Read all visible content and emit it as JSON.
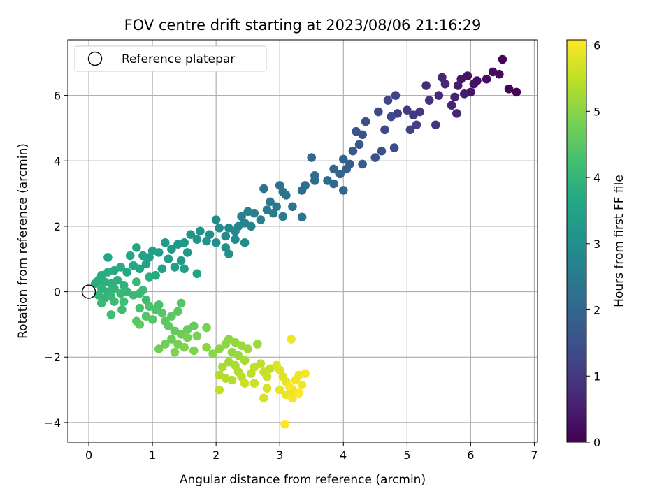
{
  "chart_data": {
    "type": "scatter",
    "title": "FOV centre drift starting at 2023/08/06 21:16:29",
    "xlabel": "Angular distance from reference (arcmin)",
    "ylabel": "Rotation from reference (arcmin)",
    "xlim": [
      -0.33,
      7.05
    ],
    "ylim": [
      -4.6,
      7.7
    ],
    "xticks": [
      0,
      1,
      2,
      3,
      4,
      5,
      6,
      7
    ],
    "yticks": [
      -4,
      -2,
      0,
      2,
      4,
      6
    ],
    "grid": true,
    "legend": {
      "position": "top-left",
      "entries": [
        "Reference platepar"
      ]
    },
    "reference_point": {
      "x": 0,
      "y": 0,
      "label": "Reference platepar"
    },
    "colorbar": {
      "label": "Hours from first FF file",
      "colormap": "viridis",
      "range": [
        0,
        6.08
      ],
      "ticks": [
        0,
        1,
        2,
        3,
        4,
        5,
        6
      ]
    },
    "series": [
      {
        "name": "",
        "points": [
          [
            6.5,
            7.1,
            0.05
          ],
          [
            6.6,
            6.2,
            0.07
          ],
          [
            6.72,
            6.1,
            0.08
          ],
          [
            6.45,
            6.65,
            0.12
          ],
          [
            6.35,
            6.72,
            0.15
          ],
          [
            6.25,
            6.5,
            0.2
          ],
          [
            6.1,
            6.45,
            0.25
          ],
          [
            5.95,
            6.6,
            0.3
          ],
          [
            6.05,
            6.35,
            0.28
          ],
          [
            6.0,
            6.1,
            0.35
          ],
          [
            5.85,
            6.5,
            0.4
          ],
          [
            5.9,
            6.05,
            0.45
          ],
          [
            5.8,
            6.3,
            0.5
          ],
          [
            5.75,
            5.95,
            0.55
          ],
          [
            5.7,
            5.7,
            0.6
          ],
          [
            5.78,
            5.45,
            0.6
          ],
          [
            5.6,
            6.35,
            0.65
          ],
          [
            5.55,
            6.55,
            0.68
          ],
          [
            5.5,
            6.0,
            0.7
          ],
          [
            5.3,
            6.3,
            0.8
          ],
          [
            5.35,
            5.85,
            0.85
          ],
          [
            5.2,
            5.5,
            0.95
          ],
          [
            5.1,
            5.4,
            1.0
          ],
          [
            5.0,
            5.55,
            1.05
          ],
          [
            4.85,
            5.45,
            1.1
          ],
          [
            5.05,
            4.95,
            1.15
          ],
          [
            5.15,
            5.1,
            1.15
          ],
          [
            5.45,
            5.1,
            0.9
          ],
          [
            4.82,
            6.0,
            1.2
          ],
          [
            4.7,
            5.85,
            1.25
          ],
          [
            4.75,
            5.35,
            1.3
          ],
          [
            4.65,
            4.95,
            1.35
          ],
          [
            4.55,
            5.5,
            1.35
          ],
          [
            4.8,
            4.4,
            1.45
          ],
          [
            4.6,
            4.3,
            1.5
          ],
          [
            4.5,
            4.1,
            1.55
          ],
          [
            4.35,
            5.2,
            1.45
          ],
          [
            4.3,
            4.8,
            1.5
          ],
          [
            4.2,
            4.9,
            1.55
          ],
          [
            4.25,
            4.5,
            1.65
          ],
          [
            4.15,
            4.3,
            1.7
          ],
          [
            4.1,
            3.9,
            1.8
          ],
          [
            4.05,
            3.75,
            1.85
          ],
          [
            4.3,
            3.9,
            1.75
          ],
          [
            4.0,
            4.05,
            1.9
          ],
          [
            3.95,
            3.6,
            1.95
          ],
          [
            3.85,
            3.75,
            2.0
          ],
          [
            4.0,
            3.1,
            2.0
          ],
          [
            3.85,
            3.3,
            2.05
          ],
          [
            3.75,
            3.4,
            2.1
          ],
          [
            3.55,
            3.4,
            2.1
          ],
          [
            3.55,
            3.55,
            2.15
          ],
          [
            3.5,
            4.1,
            2.05
          ],
          [
            3.35,
            3.1,
            2.2
          ],
          [
            3.4,
            3.25,
            2.2
          ],
          [
            3.35,
            2.28,
            2.35
          ],
          [
            3.2,
            2.6,
            2.3
          ],
          [
            3.1,
            2.95,
            2.3
          ],
          [
            3.0,
            3.25,
            2.25
          ],
          [
            3.05,
            3.05,
            2.3
          ],
          [
            2.85,
            2.75,
            2.4
          ],
          [
            2.95,
            2.6,
            2.4
          ],
          [
            2.75,
            3.15,
            2.3
          ],
          [
            3.05,
            2.3,
            2.5
          ],
          [
            2.9,
            2.4,
            2.5
          ],
          [
            2.8,
            2.5,
            2.5
          ],
          [
            2.7,
            2.2,
            2.6
          ],
          [
            2.6,
            2.4,
            2.6
          ],
          [
            2.5,
            2.45,
            2.65
          ],
          [
            2.4,
            2.3,
            2.65
          ],
          [
            2.55,
            2.0,
            2.7
          ],
          [
            2.45,
            2.1,
            2.75
          ],
          [
            2.35,
            2.0,
            2.8
          ],
          [
            2.3,
            1.85,
            2.8
          ],
          [
            2.2,
            1.95,
            2.85
          ],
          [
            2.45,
            1.5,
            2.9
          ],
          [
            2.3,
            1.6,
            2.85
          ],
          [
            2.15,
            1.7,
            2.9
          ],
          [
            2.05,
            1.95,
            2.95
          ],
          [
            2.0,
            2.2,
            2.9
          ],
          [
            2.15,
            1.35,
            3.0
          ],
          [
            2.2,
            1.15,
            3.0
          ],
          [
            2.0,
            1.5,
            3.0
          ],
          [
            1.9,
            1.75,
            3.05
          ],
          [
            1.85,
            1.55,
            3.1
          ],
          [
            1.75,
            1.85,
            3.1
          ],
          [
            1.7,
            1.6,
            3.15
          ],
          [
            1.6,
            1.75,
            3.15
          ],
          [
            1.5,
            1.5,
            3.2
          ],
          [
            1.55,
            1.2,
            3.2
          ],
          [
            1.4,
            1.45,
            3.25
          ],
          [
            1.3,
            1.3,
            3.25
          ],
          [
            1.2,
            1.5,
            3.3
          ],
          [
            1.45,
            0.95,
            3.3
          ],
          [
            1.35,
            0.75,
            3.35
          ],
          [
            1.25,
            1.0,
            3.35
          ],
          [
            1.1,
            1.2,
            3.4
          ],
          [
            1.0,
            1.25,
            3.4
          ],
          [
            0.95,
            1.05,
            3.45
          ],
          [
            0.85,
            1.1,
            3.5
          ],
          [
            0.9,
            0.85,
            3.5
          ],
          [
            1.15,
            0.7,
            3.5
          ],
          [
            1.5,
            0.7,
            3.4
          ],
          [
            1.7,
            0.55,
            3.5
          ],
          [
            0.75,
            1.35,
            3.55
          ],
          [
            0.65,
            1.1,
            3.6
          ],
          [
            0.3,
            1.05,
            3.6
          ],
          [
            0.8,
            0.7,
            3.6
          ],
          [
            0.7,
            0.8,
            3.65
          ],
          [
            0.6,
            0.6,
            3.65
          ],
          [
            0.5,
            0.75,
            3.7
          ],
          [
            0.4,
            0.65,
            3.7
          ],
          [
            0.3,
            0.6,
            3.75
          ],
          [
            0.2,
            0.5,
            3.75
          ],
          [
            0.95,
            0.45,
            3.75
          ],
          [
            1.05,
            0.5,
            3.7
          ],
          [
            0.15,
            0.35,
            3.8
          ],
          [
            0.1,
            0.25,
            3.8
          ],
          [
            0.25,
            0.3,
            3.85
          ],
          [
            0.35,
            0.25,
            3.85
          ],
          [
            0.45,
            0.35,
            3.85
          ],
          [
            0.55,
            0.2,
            3.9
          ],
          [
            0.2,
            0.1,
            3.9
          ],
          [
            0.3,
            0.0,
            3.95
          ],
          [
            0.4,
            0.1,
            3.95
          ],
          [
            0.15,
            -0.1,
            4.0
          ],
          [
            0.25,
            -0.2,
            4.0
          ],
          [
            0.35,
            -0.15,
            4.05
          ],
          [
            0.5,
            -0.05,
            4.05
          ],
          [
            0.6,
            0.0,
            4.0
          ],
          [
            0.7,
            -0.1,
            4.1
          ],
          [
            0.8,
            -0.05,
            4.1
          ],
          [
            0.75,
            0.3,
            4.05
          ],
          [
            0.85,
            0.05,
            4.1
          ],
          [
            0.9,
            -0.25,
            4.15
          ],
          [
            0.2,
            -0.35,
            4.1
          ],
          [
            0.4,
            -0.3,
            4.15
          ],
          [
            0.55,
            -0.3,
            4.2
          ],
          [
            0.35,
            -0.7,
            4.2
          ],
          [
            0.52,
            -0.55,
            4.2
          ],
          [
            0.8,
            -0.5,
            4.3
          ],
          [
            0.95,
            -0.45,
            4.35
          ],
          [
            1.05,
            -0.55,
            4.35
          ],
          [
            1.1,
            -0.4,
            4.3
          ],
          [
            0.9,
            -0.75,
            4.4
          ],
          [
            1.0,
            -0.85,
            4.45
          ],
          [
            1.2,
            -0.9,
            4.5
          ],
          [
            1.15,
            -0.65,
            4.45
          ],
          [
            1.3,
            -0.75,
            4.5
          ],
          [
            1.4,
            -0.6,
            4.5
          ],
          [
            1.45,
            -0.35,
            4.45
          ],
          [
            0.8,
            -1.0,
            4.6
          ],
          [
            0.75,
            -0.9,
            4.5
          ],
          [
            1.25,
            -1.05,
            4.6
          ],
          [
            1.35,
            -1.2,
            4.6
          ],
          [
            1.55,
            -1.15,
            4.65
          ],
          [
            1.65,
            -1.05,
            4.65
          ],
          [
            1.45,
            -1.3,
            4.7
          ],
          [
            1.3,
            -1.45,
            4.7
          ],
          [
            1.2,
            -1.6,
            4.75
          ],
          [
            1.1,
            -1.75,
            4.75
          ],
          [
            1.4,
            -1.6,
            4.8
          ],
          [
            1.55,
            -1.4,
            4.8
          ],
          [
            1.7,
            -1.35,
            4.8
          ],
          [
            1.85,
            -1.1,
            4.85
          ],
          [
            1.65,
            -1.8,
            4.9
          ],
          [
            1.5,
            -1.7,
            4.9
          ],
          [
            1.35,
            -1.85,
            4.9
          ],
          [
            1.85,
            -1.7,
            5.0
          ],
          [
            1.95,
            -1.9,
            5.0
          ],
          [
            2.05,
            -1.75,
            5.05
          ],
          [
            2.15,
            -1.6,
            5.05
          ],
          [
            2.2,
            -1.45,
            5.05
          ],
          [
            2.3,
            -1.55,
            5.1
          ],
          [
            2.25,
            -1.85,
            5.1
          ],
          [
            2.4,
            -1.65,
            5.15
          ],
          [
            2.35,
            -1.95,
            5.15
          ],
          [
            2.5,
            -1.75,
            5.2
          ],
          [
            2.65,
            -1.6,
            5.2
          ],
          [
            2.45,
            -2.1,
            5.25
          ],
          [
            2.2,
            -2.15,
            5.25
          ],
          [
            2.1,
            -2.3,
            5.3
          ],
          [
            2.3,
            -2.25,
            5.3
          ],
          [
            2.35,
            -2.45,
            5.35
          ],
          [
            2.05,
            -2.55,
            5.35
          ],
          [
            2.15,
            -2.65,
            5.4
          ],
          [
            2.25,
            -2.7,
            5.4
          ],
          [
            2.4,
            -2.6,
            5.45
          ],
          [
            2.55,
            -2.5,
            5.45
          ],
          [
            2.6,
            -2.3,
            5.5
          ],
          [
            2.7,
            -2.2,
            5.5
          ],
          [
            2.75,
            -2.45,
            5.55
          ],
          [
            2.85,
            -2.35,
            5.55
          ],
          [
            2.8,
            -2.6,
            5.6
          ],
          [
            2.6,
            -2.8,
            5.6
          ],
          [
            2.05,
            -3.0,
            5.5
          ],
          [
            2.45,
            -2.8,
            5.6
          ],
          [
            2.8,
            -2.95,
            5.7
          ],
          [
            2.75,
            -3.25,
            5.7
          ],
          [
            2.95,
            -2.25,
            5.75
          ],
          [
            3.0,
            -2.4,
            5.8
          ],
          [
            3.05,
            -2.6,
            5.8
          ],
          [
            3.1,
            -2.75,
            5.85
          ],
          [
            3.0,
            -3.0,
            5.85
          ],
          [
            3.1,
            -3.15,
            5.9
          ],
          [
            3.2,
            -3.0,
            5.9
          ],
          [
            3.25,
            -2.7,
            5.95
          ],
          [
            3.3,
            -2.55,
            5.95
          ],
          [
            3.35,
            -2.85,
            6.0
          ],
          [
            3.4,
            -2.5,
            6.0
          ],
          [
            3.2,
            -3.25,
            6.0
          ],
          [
            3.3,
            -3.1,
            6.05
          ],
          [
            3.15,
            -2.9,
            6.05
          ],
          [
            3.18,
            -1.45,
            5.95
          ],
          [
            3.08,
            -4.05,
            6.05
          ]
        ]
      }
    ]
  }
}
